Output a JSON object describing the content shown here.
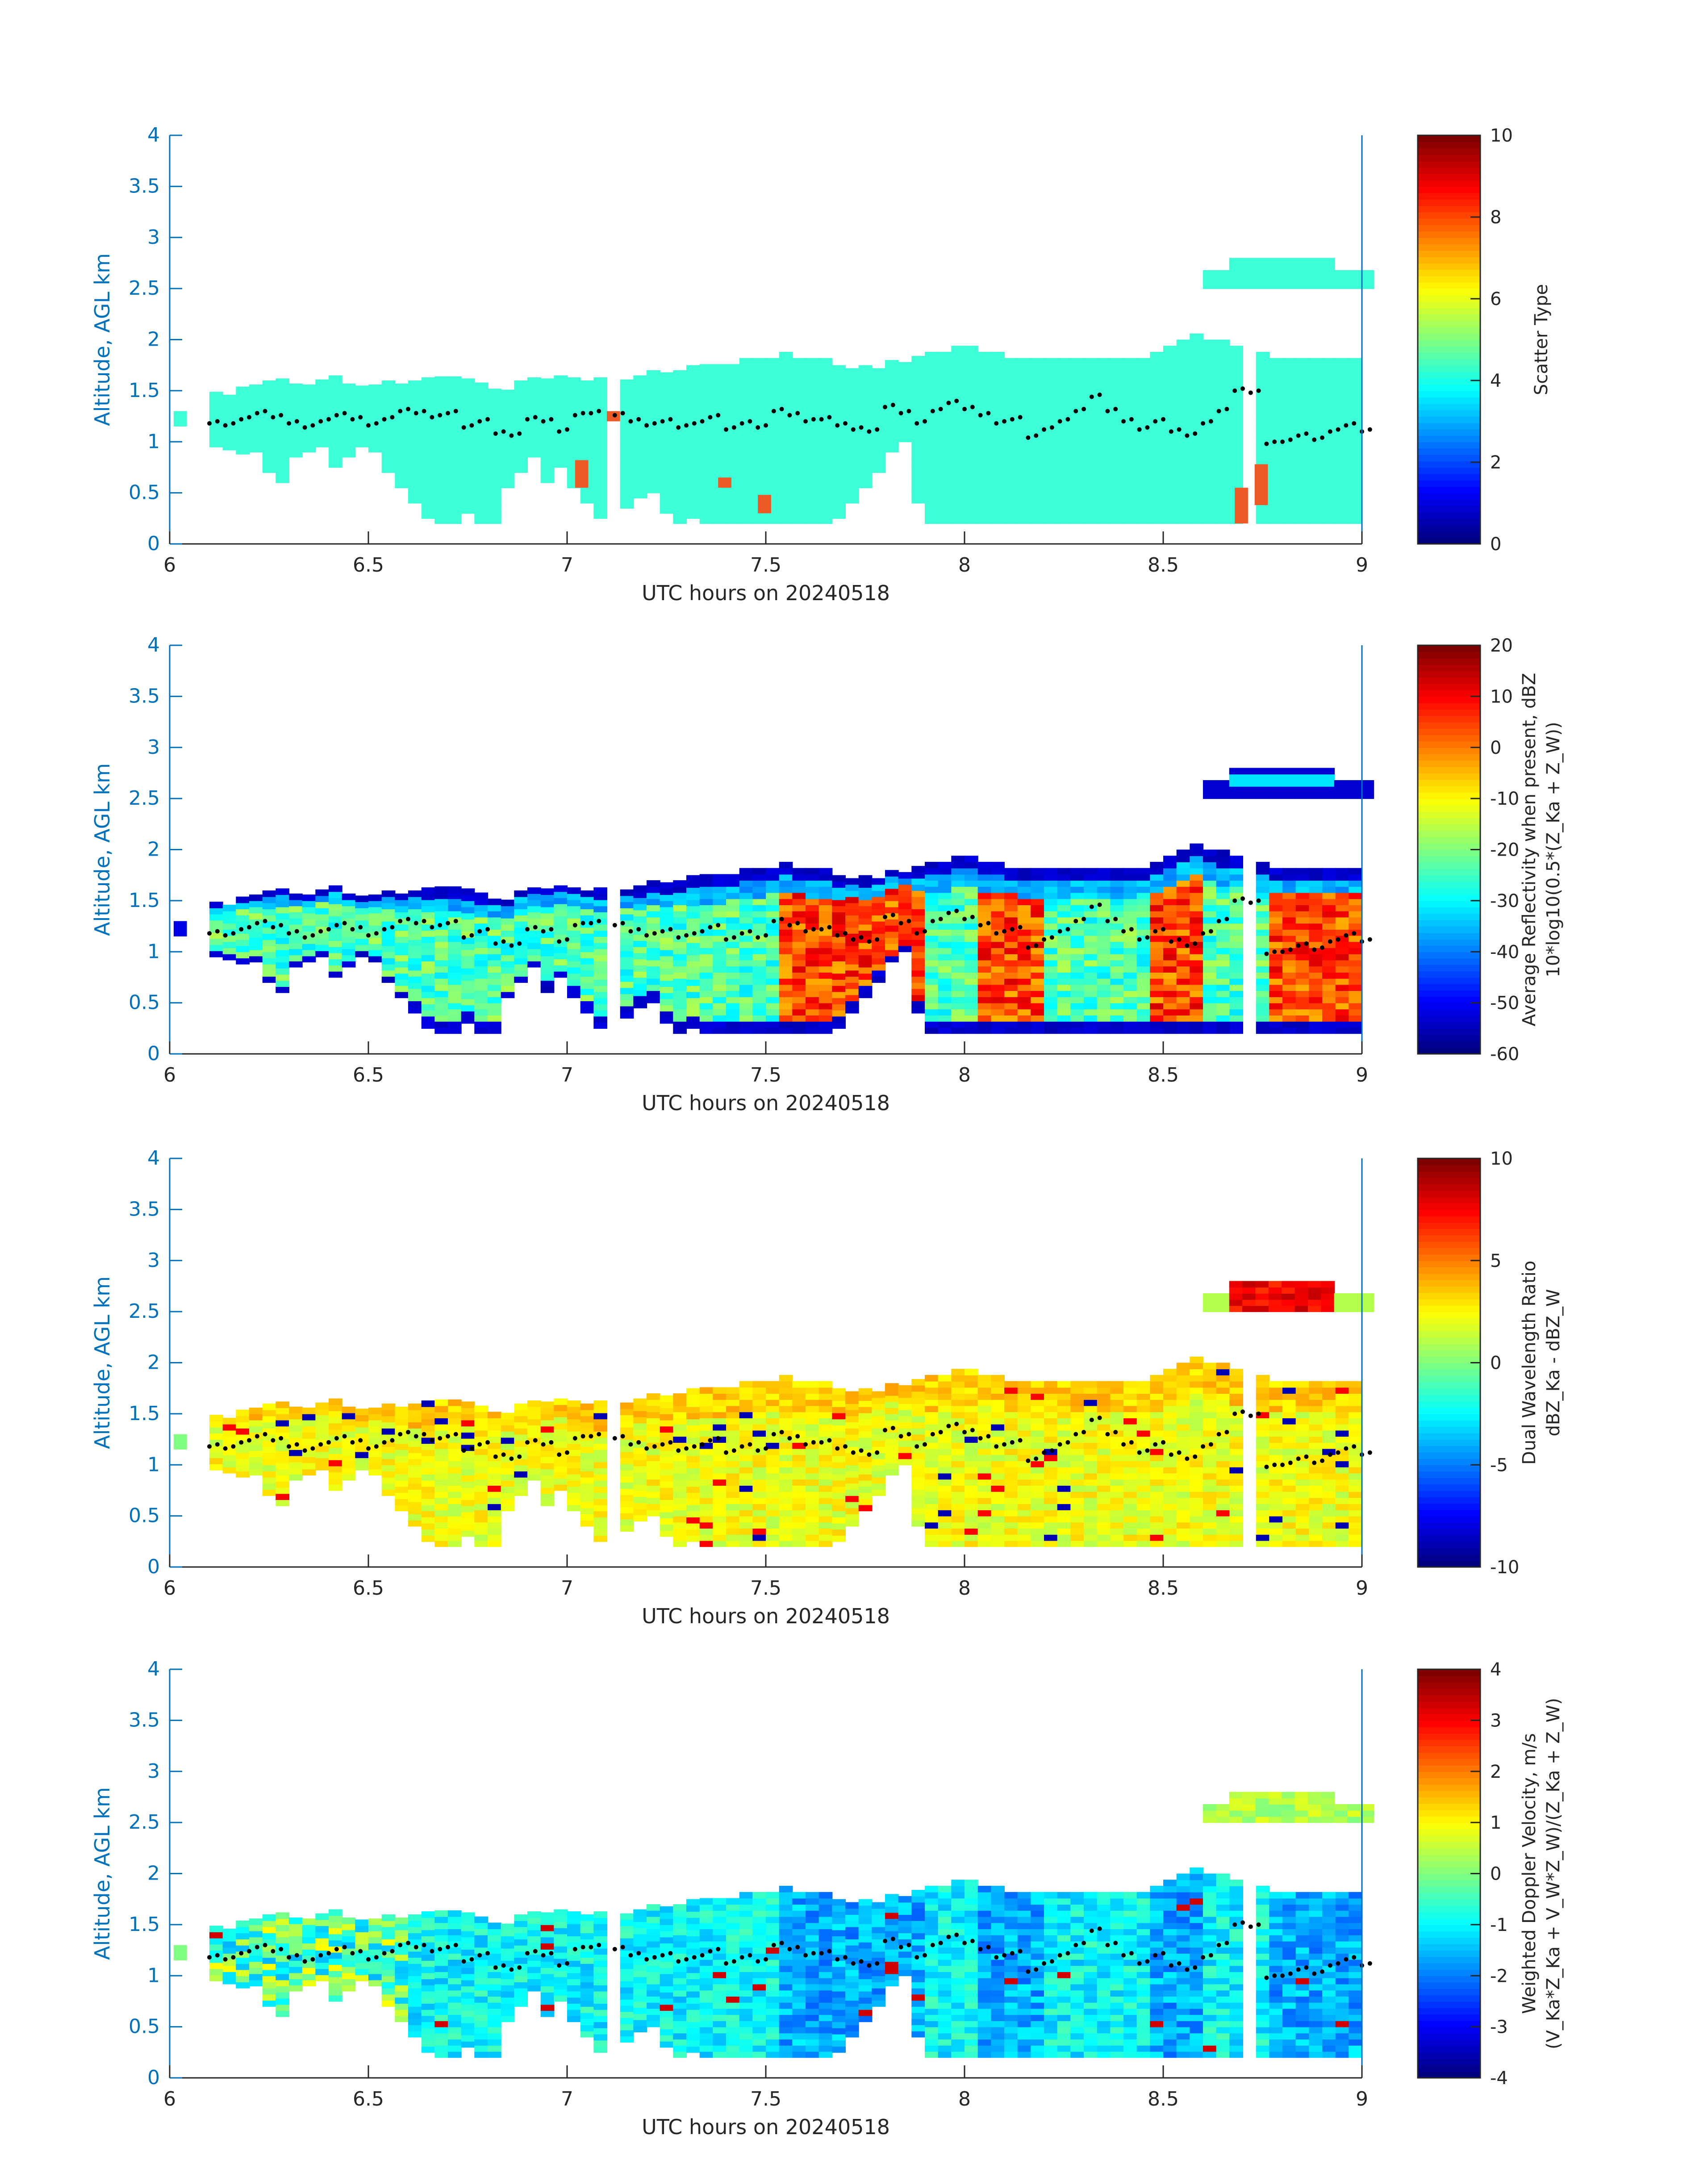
{
  "figure": {
    "xlabel": "UTC hours on 20240518",
    "ylabel": "Altitude, AGL km"
  },
  "style": {
    "axis_color": "#0072BD",
    "text_color": "#262626",
    "cloud_color_scatter": "#3CFFD8",
    "aerosol_color": "#ED5A25",
    "dot_color": "#000000"
  },
  "chart_data": [
    {
      "type": "heatmap",
      "panel": "scatter-type",
      "xlabel": "UTC hours on 20240518",
      "ylabel": "Altitude, AGL km",
      "xlim": [
        6,
        9
      ],
      "ylim": [
        0,
        4
      ],
      "xticks": [
        "6",
        "6.5",
        "7",
        "7.5",
        "8",
        "8.5",
        "9"
      ],
      "yticks": [
        "0",
        "0.5",
        "1",
        "1.5",
        "2",
        "2.5",
        "3",
        "3.5",
        "4"
      ],
      "colorbar": {
        "colormap": "jet",
        "range": [
          0,
          10
        ],
        "ticks": [
          "0",
          "2",
          "4",
          "6",
          "8",
          "10"
        ],
        "label_lines": [
          "Scatter Type"
        ]
      }
    },
    {
      "type": "heatmap",
      "panel": "reflectivity",
      "xlabel": "UTC hours on 20240518",
      "ylabel": "Altitude, AGL km",
      "xlim": [
        6,
        9
      ],
      "ylim": [
        0,
        4
      ],
      "xticks": [
        "6",
        "6.5",
        "7",
        "7.5",
        "8",
        "8.5",
        "9"
      ],
      "yticks": [
        "0",
        "0.5",
        "1",
        "1.5",
        "2",
        "2.5",
        "3",
        "3.5",
        "4"
      ],
      "colorbar": {
        "colormap": "jet",
        "range": [
          -60,
          20
        ],
        "ticks": [
          "-60",
          "-50",
          "-40",
          "-30",
          "-20",
          "-10",
          "0",
          "10",
          "20"
        ],
        "label_lines": [
          "Average Reflectivity when present, dBZ",
          "10*log10(0.5*(Z_Ka + Z_W))"
        ]
      }
    },
    {
      "type": "heatmap",
      "panel": "dwr",
      "xlabel": "UTC hours on 20240518",
      "ylabel": "Altitude, AGL km",
      "xlim": [
        6,
        9
      ],
      "ylim": [
        0,
        4
      ],
      "xticks": [
        "6",
        "6.5",
        "7",
        "7.5",
        "8",
        "8.5",
        "9"
      ],
      "yticks": [
        "0",
        "0.5",
        "1",
        "1.5",
        "2",
        "2.5",
        "3",
        "3.5",
        "4"
      ],
      "colorbar": {
        "colormap": "jet",
        "range": [
          -10,
          10
        ],
        "ticks": [
          "-10",
          "-5",
          "0",
          "5",
          "10"
        ],
        "label_lines": [
          "Dual Wavelength Ratio",
          "dBZ_Ka - dBZ_W"
        ]
      }
    },
    {
      "type": "heatmap",
      "panel": "doppler",
      "xlabel": "UTC hours on 20240518",
      "ylabel": "Altitude, AGL km",
      "xlim": [
        6,
        9
      ],
      "ylim": [
        0,
        4
      ],
      "xticks": [
        "6",
        "6.5",
        "7",
        "7.5",
        "8",
        "8.5",
        "9"
      ],
      "yticks": [
        "0",
        "0.5",
        "1",
        "1.5",
        "2",
        "2.5",
        "3",
        "3.5",
        "4"
      ],
      "colorbar": {
        "colormap": "jet",
        "range": [
          -4,
          4
        ],
        "ticks": [
          "-4",
          "-3",
          "-2",
          "-1",
          "0",
          "1",
          "2",
          "3",
          "4"
        ],
        "label_lines": [
          "Weighted Doppler Velocity, m/s",
          "(V_Ka*Z_Ka + V_W*Z_W)/(Z_Ka + Z_W)"
        ]
      }
    }
  ],
  "cloud_geometry": {
    "columns_start_hour": 6.1,
    "columns_end_hour": 9.0,
    "tops_km": [
      1.45,
      1.45,
      1.5,
      1.52,
      1.55,
      1.58,
      1.55,
      1.55,
      1.58,
      1.6,
      1.55,
      1.52,
      1.52,
      1.55,
      1.55,
      1.58,
      1.6,
      1.62,
      1.6,
      1.58,
      1.55,
      1.52,
      1.5,
      1.55,
      1.58,
      1.6,
      1.62,
      1.62,
      1.6,
      1.58,
      1.55,
      1.6,
      1.62,
      1.65,
      1.65,
      1.68,
      1.7,
      1.72,
      1.72,
      1.75,
      1.78,
      1.8,
      1.82,
      1.85,
      1.82,
      1.8,
      1.78,
      1.75,
      1.72,
      1.7,
      1.72,
      1.75,
      1.78,
      1.8,
      1.85,
      1.88,
      1.9,
      1.92,
      1.88,
      1.85,
      1.82,
      1.8,
      1.78,
      1.78,
      1.8,
      1.82,
      1.82,
      1.8,
      1.78,
      1.8,
      1.82,
      1.85,
      1.9,
      2.0,
      2.05,
      2.0,
      1.95,
      1.9,
      1.88,
      1.85,
      1.82,
      1.82,
      1.82,
      1.82,
      1.82,
      1.82,
      1.82
    ],
    "bases_km": [
      0.95,
      0.92,
      0.88,
      0.9,
      0.7,
      0.6,
      0.85,
      0.9,
      0.95,
      0.75,
      0.85,
      0.95,
      0.9,
      0.7,
      0.55,
      0.4,
      0.25,
      0.2,
      0.2,
      0.3,
      0.2,
      0.2,
      0.55,
      0.7,
      0.85,
      0.6,
      0.75,
      0.55,
      0.4,
      0.25,
      0.2,
      0.35,
      0.45,
      0.5,
      0.3,
      0.2,
      0.25,
      0.2,
      0.2,
      0.2,
      0.2,
      0.2,
      0.2,
      0.2,
      0.2,
      0.2,
      0.2,
      0.25,
      0.4,
      0.55,
      0.7,
      0.9,
      1.0,
      0.4,
      0.2,
      0.2,
      0.2,
      0.2,
      0.2,
      0.2,
      0.2,
      0.2,
      0.2,
      0.2,
      0.2,
      0.2,
      0.2,
      0.2,
      0.2,
      0.2,
      0.2,
      0.2,
      0.2,
      0.2,
      0.2,
      0.2,
      0.2,
      0.2,
      0.2,
      0.2,
      0.2,
      0.2,
      0.2,
      0.2,
      0.2,
      0.2,
      0.2
    ],
    "gap_hours": [
      [
        7.1,
        7.12
      ],
      [
        8.68,
        8.72
      ]
    ],
    "upper_layer": {
      "start_hour": 8.6,
      "end_hour": 9.0,
      "base_km": 2.5,
      "top_km": 2.78
    },
    "dots_hours_km": [
      [
        6.1,
        1.18
      ],
      [
        6.14,
        1.16
      ],
      [
        6.18,
        1.22
      ],
      [
        6.22,
        1.28
      ],
      [
        6.26,
        1.24
      ],
      [
        6.3,
        1.18
      ],
      [
        6.34,
        1.14
      ],
      [
        6.38,
        1.2
      ],
      [
        6.42,
        1.26
      ],
      [
        6.46,
        1.22
      ],
      [
        6.5,
        1.16
      ],
      [
        6.54,
        1.22
      ],
      [
        6.58,
        1.3
      ],
      [
        6.62,
        1.28
      ],
      [
        6.66,
        1.24
      ],
      [
        6.7,
        1.28
      ],
      [
        6.74,
        1.14
      ],
      [
        6.78,
        1.2
      ],
      [
        6.82,
        1.08
      ],
      [
        6.86,
        1.06
      ],
      [
        6.9,
        1.22
      ],
      [
        6.94,
        1.2
      ],
      [
        6.98,
        1.1
      ],
      [
        7.02,
        1.26
      ],
      [
        7.06,
        1.28
      ],
      [
        7.12,
        1.26
      ],
      [
        7.16,
        1.2
      ],
      [
        7.2,
        1.16
      ],
      [
        7.24,
        1.2
      ],
      [
        7.28,
        1.14
      ],
      [
        7.32,
        1.18
      ],
      [
        7.36,
        1.24
      ],
      [
        7.4,
        1.12
      ],
      [
        7.44,
        1.18
      ],
      [
        7.48,
        1.14
      ],
      [
        7.52,
        1.3
      ],
      [
        7.56,
        1.26
      ],
      [
        7.6,
        1.2
      ],
      [
        7.64,
        1.22
      ],
      [
        7.68,
        1.16
      ],
      [
        7.72,
        1.12
      ],
      [
        7.76,
        1.1
      ],
      [
        7.8,
        1.34
      ],
      [
        7.84,
        1.28
      ],
      [
        7.88,
        1.18
      ],
      [
        7.92,
        1.3
      ],
      [
        7.96,
        1.38
      ],
      [
        8.0,
        1.32
      ],
      [
        8.04,
        1.26
      ],
      [
        8.08,
        1.18
      ],
      [
        8.12,
        1.22
      ],
      [
        8.16,
        1.04
      ],
      [
        8.2,
        1.12
      ],
      [
        8.24,
        1.2
      ],
      [
        8.28,
        1.3
      ],
      [
        8.32,
        1.44
      ],
      [
        8.36,
        1.3
      ],
      [
        8.4,
        1.2
      ],
      [
        8.44,
        1.12
      ],
      [
        8.48,
        1.2
      ],
      [
        8.52,
        1.1
      ],
      [
        8.56,
        1.06
      ],
      [
        8.6,
        1.18
      ],
      [
        8.64,
        1.3
      ],
      [
        8.68,
        1.5
      ],
      [
        8.72,
        1.48
      ],
      [
        8.76,
        0.98
      ],
      [
        8.8,
        1.0
      ],
      [
        8.84,
        1.06
      ],
      [
        8.88,
        1.02
      ],
      [
        8.92,
        1.1
      ],
      [
        8.96,
        1.16
      ],
      [
        9.0,
        1.1
      ]
    ]
  }
}
